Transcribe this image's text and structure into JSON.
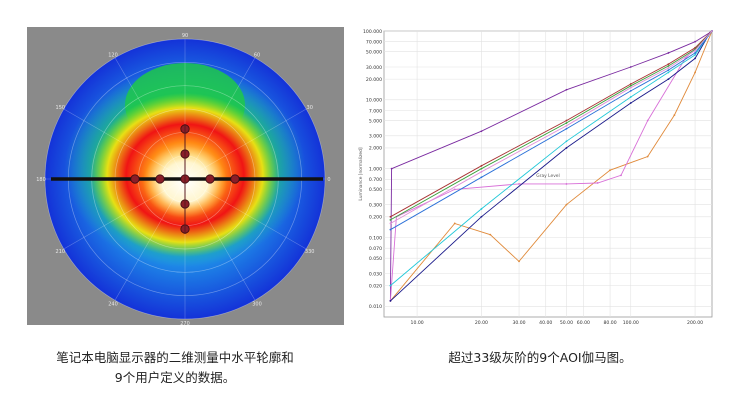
{
  "captions": {
    "left_line1": "笔记本电脑显示器的二维测量中水平轮廓和",
    "left_line2": "9个用户定义的数据。",
    "right": "超过33级灰阶的9个AOI伽马图。"
  },
  "chart_data": [
    {
      "type": "heatmap",
      "subtype": "polar-conoscope",
      "angle_labels": [
        "90",
        "60",
        "30",
        "0",
        "330",
        "300",
        "270",
        "240",
        "210",
        "180",
        "150",
        "120"
      ],
      "radial_rings": 6,
      "colormap": [
        "#1434dc",
        "#14c8c8",
        "#1ec81e",
        "#e6e614",
        "#f01414",
        "#fff0c0",
        "#ffffff"
      ],
      "hot_spot": "center",
      "horizontal_profile": true,
      "user_points": [
        {
          "r": 0,
          "angle": 0
        },
        {
          "r": 0.2,
          "angle": 0
        },
        {
          "r": 0.2,
          "angle": 180
        },
        {
          "r": 0.4,
          "angle": 0
        },
        {
          "r": 0.4,
          "angle": 180
        },
        {
          "r": 0.2,
          "angle": 90
        },
        {
          "r": 0.2,
          "angle": 270
        },
        {
          "r": 0.4,
          "angle": 90
        },
        {
          "r": 0.4,
          "angle": 270
        }
      ]
    },
    {
      "type": "line",
      "title": "",
      "xlabel": "Gray Level",
      "ylabel": "Luminance [normalized]",
      "xscale": "log",
      "yscale": "log",
      "xlim": [
        7,
        240
      ],
      "ylim": [
        0.007,
        100
      ],
      "x_ticks": [
        10,
        20,
        30,
        40,
        50,
        60,
        80,
        100,
        200
      ],
      "x_tick_labels": [
        "10.00",
        "20.00",
        "30.00",
        "40.00",
        "50.00",
        "60.00",
        "80.00",
        "100.00",
        "200.00"
      ],
      "y_ticks": [
        0.01,
        0.02,
        0.03,
        0.05,
        0.07,
        0.1,
        0.2,
        0.3,
        0.5,
        0.7,
        1,
        2,
        3,
        5,
        7,
        10,
        20,
        30,
        50,
        70,
        100
      ],
      "y_tick_labels": [
        "0.010",
        "0.020",
        "0.030",
        "0.050",
        "0.070",
        "0.100",
        "0.200",
        "0.300",
        "0.500",
        "0.700",
        "1.000",
        "2.000",
        "3.000",
        "5.000",
        "7.000",
        "10.000",
        "20.000",
        "30.000",
        "50.000",
        "70.000",
        "100.000"
      ],
      "grid": true,
      "series": [
        {
          "color": "#7a2aa0",
          "x": [
            7.5,
            7.6,
            20,
            50,
            100,
            150,
            200,
            235,
            240
          ],
          "y": [
            0.012,
            1.0,
            3.5,
            14,
            30,
            48,
            70,
            95,
            100
          ]
        },
        {
          "color": "#e08a3a",
          "x": [
            7.5,
            15,
            22,
            30,
            50,
            80,
            120,
            160,
            200,
            240
          ],
          "y": [
            0.012,
            0.16,
            0.11,
            0.045,
            0.3,
            0.95,
            1.5,
            6,
            25,
            100
          ]
        },
        {
          "color": "#d870d8",
          "x": [
            7.5,
            8,
            15,
            30,
            50,
            70,
            90,
            120,
            180,
            240
          ],
          "y": [
            0.012,
            0.2,
            0.5,
            0.6,
            0.6,
            0.62,
            0.8,
            5,
            40,
            100
          ]
        },
        {
          "color": "#1a1a8a",
          "x": [
            7.5,
            20,
            50,
            100,
            150,
            200,
            230,
            240
          ],
          "y": [
            0.012,
            0.2,
            2.0,
            9,
            20,
            40,
            85,
            100
          ]
        },
        {
          "color": "#22c8d8",
          "x": [
            7.5,
            20,
            50,
            100,
            150,
            200,
            230,
            240
          ],
          "y": [
            0.02,
            0.26,
            2.5,
            11,
            25,
            45,
            85,
            100
          ]
        },
        {
          "color": "#a83232",
          "x": [
            7.5,
            20,
            50,
            100,
            150,
            200,
            240
          ],
          "y": [
            0.2,
            1.1,
            5,
            17,
            33,
            57,
            100
          ]
        },
        {
          "color": "#3aa03a",
          "x": [
            7.5,
            20,
            50,
            100,
            150,
            200,
            240
          ],
          "y": [
            0.18,
            1.0,
            4.6,
            16,
            31,
            54,
            100
          ]
        },
        {
          "color": "#2a70d8",
          "x": [
            7.5,
            20,
            50,
            100,
            150,
            200,
            240
          ],
          "y": [
            0.13,
            0.75,
            3.8,
            13.5,
            27,
            48,
            100
          ]
        },
        {
          "color": "#e090d8",
          "x": [
            7.5,
            20,
            50,
            100,
            150,
            200,
            240
          ],
          "y": [
            0.16,
            0.9,
            4.2,
            15,
            29,
            52,
            100
          ]
        }
      ]
    }
  ]
}
